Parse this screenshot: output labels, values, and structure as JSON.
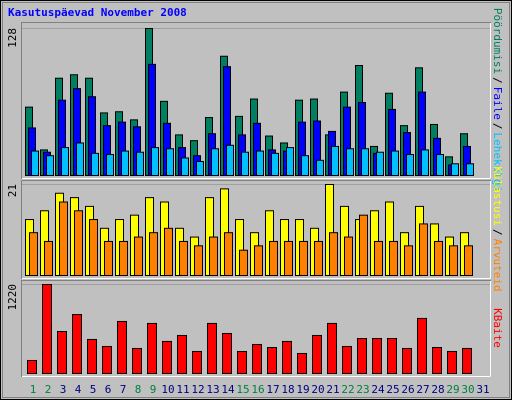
{
  "title": "Kasutuspäevad November 2008",
  "legend_separator": "/",
  "chart_data": [
    {
      "type": "bar",
      "ylim": [
        0,
        128
      ],
      "yticks": [
        128
      ],
      "grid": true,
      "series": [
        {
          "name": "Pöördumisi",
          "color": "#008060",
          "values": [
            60,
            23,
            85,
            88,
            85,
            55,
            56,
            49,
            128,
            65,
            36,
            31,
            51,
            104,
            52,
            67,
            35,
            29,
            66,
            67,
            36,
            73,
            96,
            26,
            72,
            44,
            94,
            45,
            17,
            37,
            null
          ]
        },
        {
          "name": "Faile",
          "color": "#0000ff",
          "values": [
            42,
            21,
            66,
            76,
            69,
            44,
            47,
            43,
            97,
            46,
            25,
            18,
            37,
            95,
            36,
            46,
            23,
            22,
            47,
            48,
            39,
            60,
            64,
            20,
            58,
            38,
            73,
            33,
            10,
            26,
            null
          ]
        },
        {
          "name": "Lehekülgi",
          "color": "#00c0ff",
          "values": [
            22,
            18,
            25,
            29,
            20,
            19,
            22,
            21,
            25,
            24,
            16,
            13,
            24,
            27,
            21,
            22,
            20,
            25,
            18,
            14,
            26,
            24,
            24,
            21,
            22,
            19,
            23,
            19,
            11,
            11,
            null
          ]
        }
      ]
    },
    {
      "type": "bar",
      "ylim": [
        0,
        21
      ],
      "yticks": [
        21
      ],
      "grid": true,
      "series": [
        {
          "name": "Külastusi",
          "color": "#ffff00",
          "values": [
            13,
            15,
            19,
            18,
            16,
            11,
            13,
            14,
            18,
            17,
            11,
            9,
            18,
            20,
            13,
            10,
            15,
            13,
            13,
            11,
            21,
            16,
            13,
            15,
            17,
            10,
            16,
            12,
            9,
            10,
            null
          ]
        },
        {
          "name": "Arvuteid",
          "color": "#ff8000",
          "values": [
            10,
            8,
            17,
            15,
            13,
            8,
            8,
            9,
            10,
            11,
            8,
            7,
            9,
            10,
            6,
            7,
            8,
            8,
            8,
            8,
            10,
            9,
            14,
            8,
            8,
            7,
            12,
            8,
            7,
            7,
            null
          ]
        }
      ]
    },
    {
      "type": "bar",
      "ylim": [
        0,
        1220
      ],
      "yticks": [
        1220
      ],
      "grid": true,
      "categories": [
        "1",
        "2",
        "3",
        "4",
        "5",
        "6",
        "7",
        "8",
        "9",
        "10",
        "11",
        "12",
        "13",
        "14",
        "15",
        "16",
        "17",
        "18",
        "19",
        "20",
        "21",
        "22",
        "23",
        "24",
        "25",
        "26",
        "27",
        "28",
        "29",
        "30",
        "31"
      ],
      "category_colors": [
        "#008040",
        "#008040",
        "#000080",
        "#000080",
        "#000080",
        "#000080",
        "#000080",
        "#008040",
        "#008040",
        "#000080",
        "#000080",
        "#000080",
        "#000080",
        "#000080",
        "#008040",
        "#008040",
        "#000080",
        "#000080",
        "#000080",
        "#000080",
        "#000080",
        "#008040",
        "#008040",
        "#000080",
        "#000080",
        "#000080",
        "#000080",
        "#000080",
        "#008040",
        "#008040",
        "#000080"
      ],
      "series": [
        {
          "name": "KBaite",
          "color": "#ff0000",
          "values": [
            190,
            1220,
            583,
            813,
            475,
            380,
            719,
            353,
            692,
            448,
            529,
            312,
            692,
            556,
            312,
            407,
            366,
            448,
            285,
            529,
            692,
            380,
            488,
            488,
            488,
            353,
            760,
            366,
            312,
            353,
            null
          ]
        }
      ]
    }
  ]
}
